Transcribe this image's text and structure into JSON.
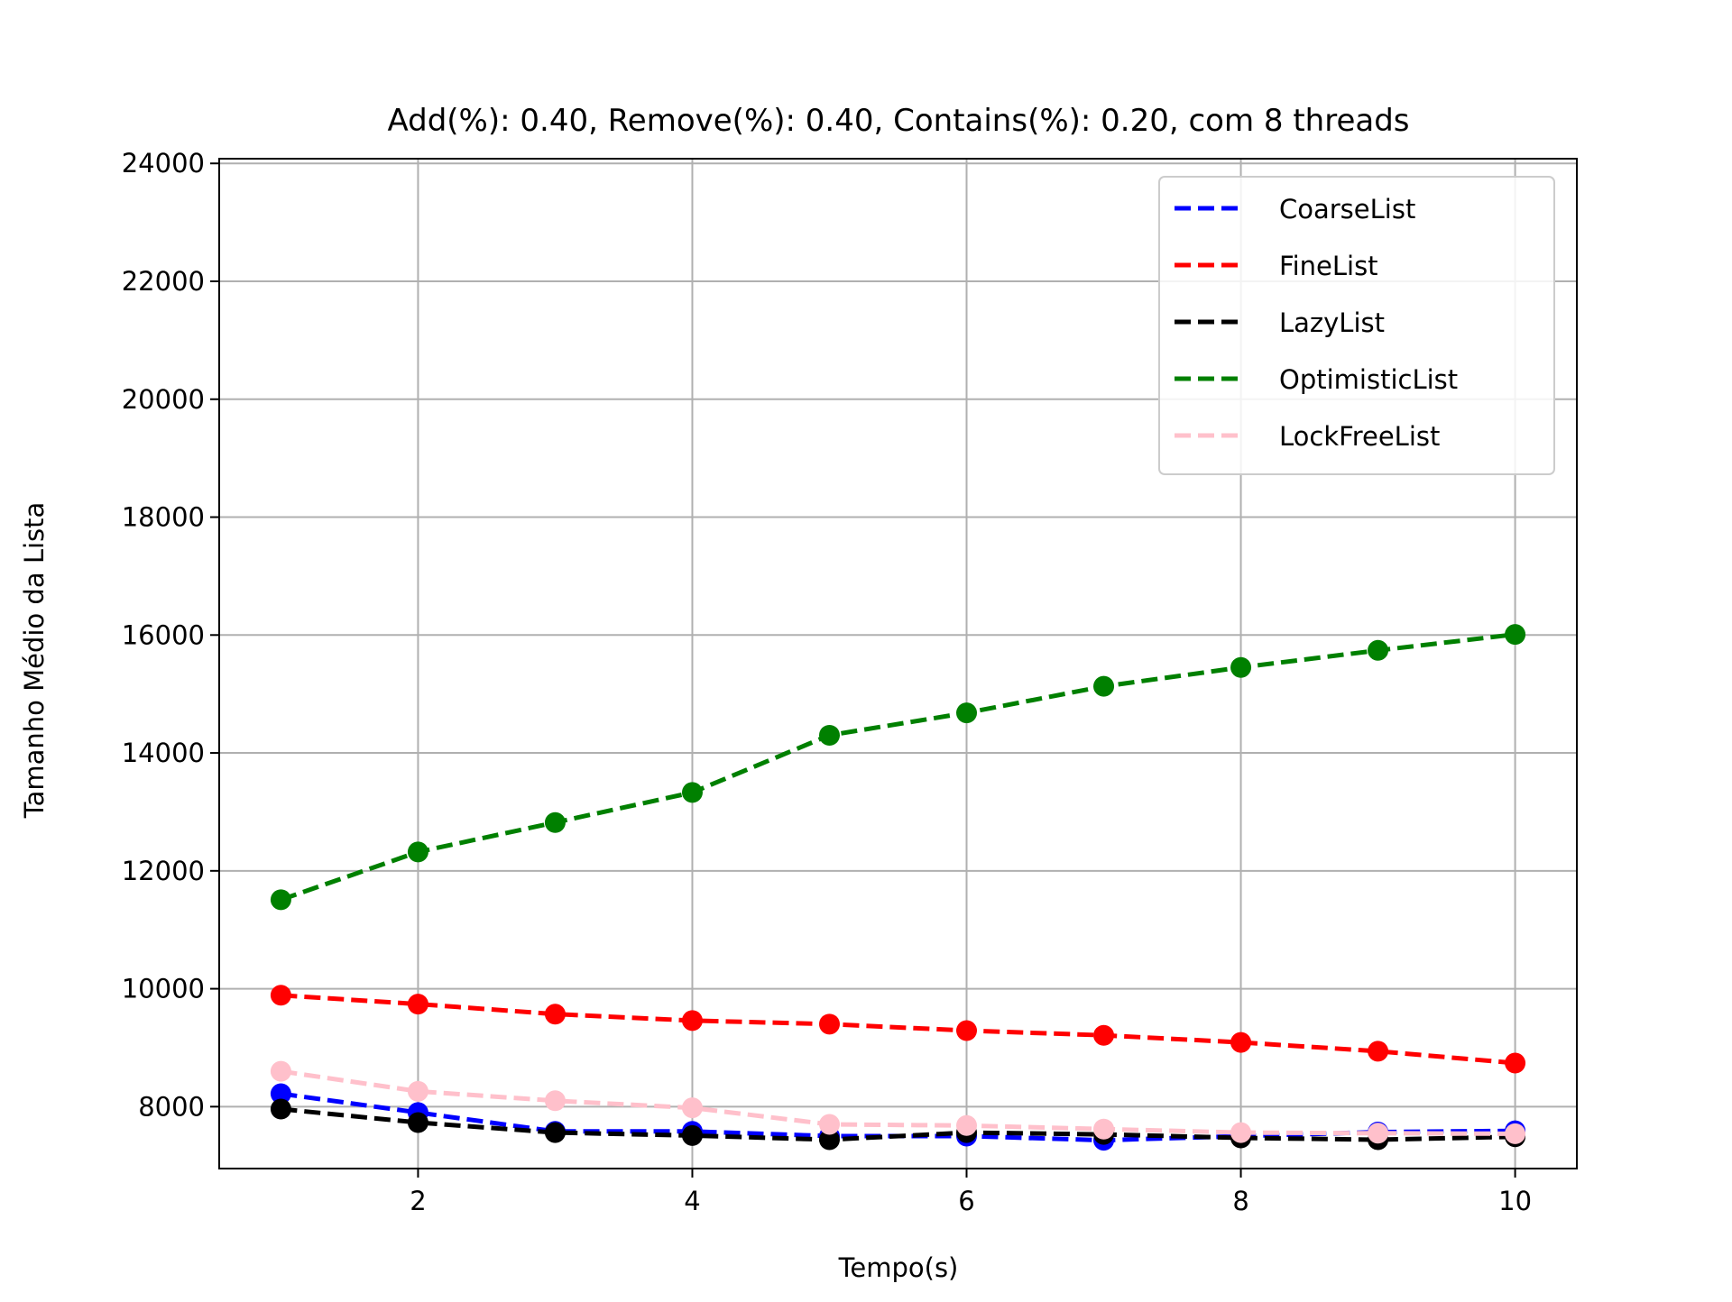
{
  "chart_data": {
    "type": "line",
    "title": "Add(%): 0.40, Remove(%): 0.40, Contains(%): 0.20, com 8 threads",
    "xlabel": "Tempo(s)",
    "ylabel": "Tamanho Médio da Lista",
    "x": [
      1,
      2,
      3,
      4,
      5,
      6,
      7,
      8,
      9,
      10
    ],
    "xlim": [
      0.55,
      10.45
    ],
    "ylim": [
      6950,
      24080
    ],
    "xticks": [
      2,
      4,
      6,
      8,
      10
    ],
    "xtick_labels": [
      "2",
      "4",
      "6",
      "8",
      "10"
    ],
    "yticks": [
      8000,
      10000,
      12000,
      14000,
      16000,
      18000,
      20000,
      22000,
      24000
    ],
    "ytick_labels": [
      "8000",
      "10000",
      "12000",
      "14000",
      "16000",
      "18000",
      "20000",
      "22000",
      "24000"
    ],
    "grid": true,
    "legend_position": "top-right",
    "series": [
      {
        "name": "CoarseList",
        "color": "#0000ff",
        "values": [
          8220,
          7900,
          7580,
          7580,
          7500,
          7500,
          7430,
          7500,
          7570,
          7590
        ]
      },
      {
        "name": "FineList",
        "color": "#ff0000",
        "values": [
          9890,
          9740,
          9570,
          9460,
          9400,
          9290,
          9210,
          9090,
          8940,
          8740
        ]
      },
      {
        "name": "LazyList",
        "color": "#000000",
        "values": [
          7960,
          7730,
          7560,
          7510,
          7440,
          7560,
          7530,
          7470,
          7440,
          7490
        ]
      },
      {
        "name": "OptimisticList",
        "color": "#008000",
        "values": [
          11510,
          12320,
          12820,
          13330,
          14300,
          14680,
          15130,
          15450,
          15740,
          16010
        ]
      },
      {
        "name": "LockFreeList",
        "color": "#ffc0cb",
        "values": [
          8600,
          8260,
          8100,
          7980,
          7700,
          7680,
          7620,
          7560,
          7550,
          7540
        ]
      }
    ]
  }
}
